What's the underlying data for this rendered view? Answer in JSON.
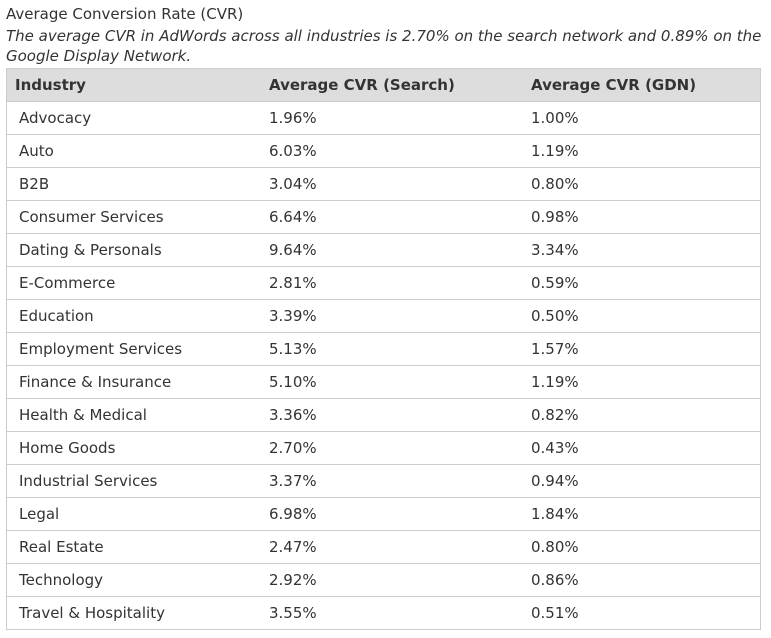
{
  "caption": {
    "title": "Average Conversion Rate (CVR)",
    "description": "The average CVR in AdWords across all industries is 2.70% on the search network and 0.89% on the Google Display Network."
  },
  "table": {
    "headers": [
      "Industry",
      "Average CVR (Search)",
      "Average CVR (GDN)"
    ],
    "rows": [
      [
        "Advocacy",
        "1.96%",
        "1.00%"
      ],
      [
        "Auto",
        "6.03%",
        "1.19%"
      ],
      [
        "B2B",
        "3.04%",
        "0.80%"
      ],
      [
        "Consumer Services",
        "6.64%",
        "0.98%"
      ],
      [
        "Dating & Personals",
        "9.64%",
        "3.34%"
      ],
      [
        "E-Commerce",
        "2.81%",
        "0.59%"
      ],
      [
        "Education",
        "3.39%",
        "0.50%"
      ],
      [
        "Employment Services",
        "5.13%",
        "1.57%"
      ],
      [
        "Finance & Insurance",
        "5.10%",
        "1.19%"
      ],
      [
        "Health & Medical",
        "3.36%",
        "0.82%"
      ],
      [
        "Home Goods",
        "2.70%",
        "0.43%"
      ],
      [
        "Industrial Services",
        "3.37%",
        "0.94%"
      ],
      [
        "Legal",
        "6.98%",
        "1.84%"
      ],
      [
        "Real Estate",
        "2.47%",
        "0.80%"
      ],
      [
        "Technology",
        "2.92%",
        "0.86%"
      ],
      [
        "Travel & Hospitality",
        "3.55%",
        "0.51%"
      ]
    ]
  },
  "colors": {
    "header_bg": "#dddddd",
    "border": "#cccccc",
    "text": "#333333"
  }
}
